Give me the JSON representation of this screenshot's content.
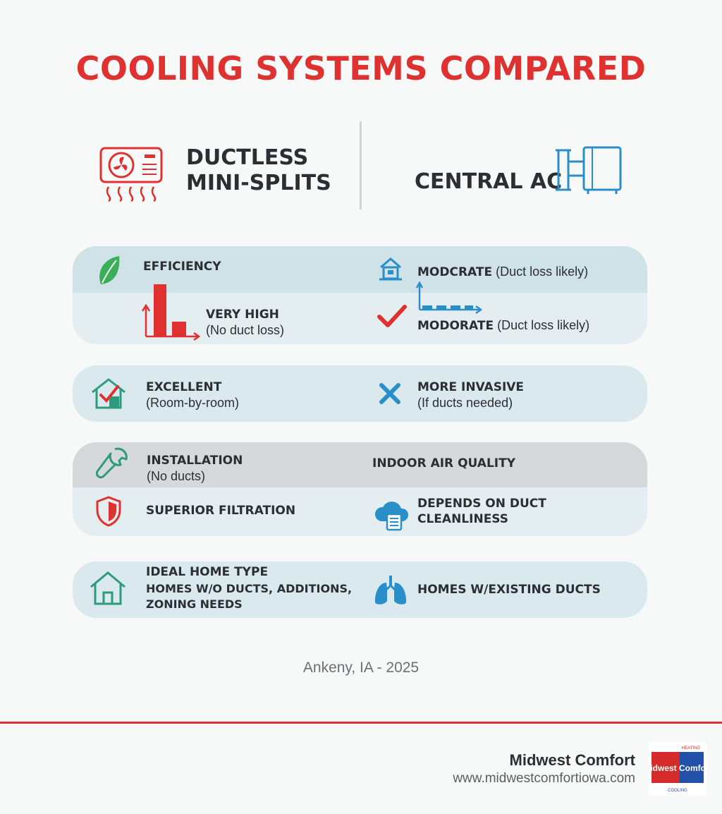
{
  "title": "COOLING SYSTEMS COMPARED",
  "columns": {
    "left": {
      "line1": "DUCTLESS",
      "line2": "MINI-SPLITS",
      "icon": "mini-split-unit-icon"
    },
    "right": {
      "title": "CENTRAL AC",
      "icon": "central-ac-unit-icon"
    }
  },
  "rows": {
    "efficiency": {
      "label": "EFFICIENCY",
      "right_top_bold": "MODCRATE",
      "right_top_note": " (Duct loss likely)",
      "left_value": "VERY HIGH",
      "left_note": "(No duct loss)",
      "right_bottom_bold": "MODORATE",
      "right_bottom_note": " (Duct loss likely)"
    },
    "zoning": {
      "left_value": "EXCELLENT",
      "left_note": "(Room-by-room)",
      "right_value": "MORE INVASIVE",
      "right_note": "(If ducts needed)"
    },
    "installation": {
      "label": "INSTALLATION",
      "note": "(No ducts)",
      "right_label": "INDOOR AIR QUALITY",
      "left_value": "SUPERIOR FILTRATION",
      "right_value_line1": "DEPENDS ON DUCT",
      "right_value_line2": "CLEANLINESS"
    },
    "home_type": {
      "label": "IDEAL HOME TYPE",
      "left_line1": "HOMES W/O DUCTS, ADDITIONS,",
      "left_line2": "ZONING NEEDS",
      "right_value": "HOMES W/EXISTING DUCTS"
    }
  },
  "footer": {
    "place": "Ankeny, IA - 2025",
    "brand": "Midwest Comfort",
    "url": "www.midwestcomfortiowa.com",
    "logo": {
      "top": "HEATING",
      "main": "Midwest Comfort",
      "bottom": "COOLING"
    }
  },
  "colors": {
    "accent_red": "#e03131",
    "accent_blue": "#2a8fc9",
    "accent_green": "#2e9a7c",
    "panel": "#e4eef1",
    "panel_band": "#cfe2e7",
    "panel_gray_band": "#d6d9dc"
  }
}
